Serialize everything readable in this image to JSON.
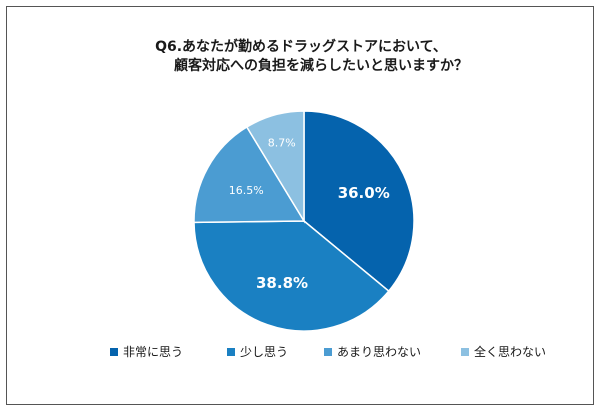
{
  "title": {
    "line1": "Q6.あなたが勤めるドラッグストアにおいて、",
    "line2": "顧客対応への負担を減らしたいと思いますか？"
  },
  "chart_data": {
    "type": "pie",
    "title": "Q6.あなたが勤めるドラッグストアにおいて、顧客対応への負担を減らしたいと思いますか？",
    "categories": [
      "非常に思う",
      "少し思う",
      "あまり思わない",
      "全く思わない"
    ],
    "values": [
      36.0,
      38.8,
      16.5,
      8.7
    ],
    "labels": [
      "36.0%",
      "38.8%",
      "16.5%",
      "8.7%"
    ],
    "colors": [
      "#0563ad",
      "#1a80c2",
      "#4b9cd2",
      "#8cc0e1"
    ],
    "start_angle_deg": 0,
    "direction": "clockwise",
    "legend_position": "bottom"
  },
  "legend": {
    "items": [
      "非常に思う",
      "少し思う",
      "あまり思わない",
      "全く思わない"
    ]
  }
}
